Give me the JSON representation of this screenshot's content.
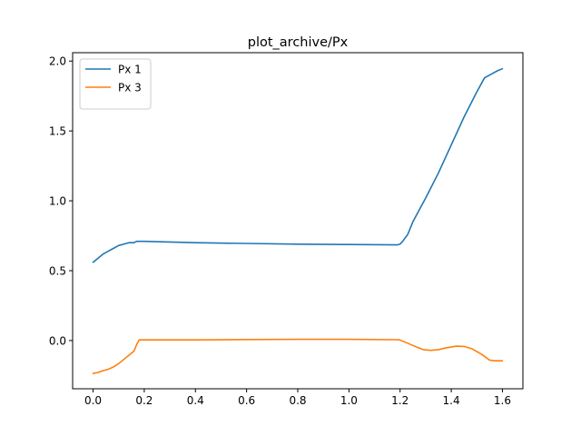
{
  "chart_data": {
    "type": "line",
    "title": "plot_archive/Px",
    "xlabel": "",
    "ylabel": "",
    "xlim": [
      -0.08,
      1.68
    ],
    "ylim": [
      -0.345,
      2.06
    ],
    "xticks": [
      0.0,
      0.2,
      0.4,
      0.6,
      0.8,
      1.0,
      1.2,
      1.4,
      1.6
    ],
    "xtick_labels": [
      "0.0",
      "0.2",
      "0.4",
      "0.6",
      "0.8",
      "1.0",
      "1.2",
      "1.4",
      "1.6"
    ],
    "yticks": [
      0.0,
      0.5,
      1.0,
      1.5,
      2.0
    ],
    "ytick_labels": [
      "0.0",
      "0.5",
      "1.0",
      "1.5",
      "2.0"
    ],
    "grid": false,
    "legend_position": "top-left",
    "series": [
      {
        "name": "Px 1",
        "color": "#1f77b4",
        "x": [
          0.0,
          0.02,
          0.04,
          0.06,
          0.08,
          0.1,
          0.12,
          0.14,
          0.16,
          0.17,
          0.18,
          0.2,
          0.4,
          0.6,
          0.8,
          1.0,
          1.19,
          1.2,
          1.21,
          1.23,
          1.25,
          1.3,
          1.35,
          1.4,
          1.45,
          1.5,
          1.53,
          1.56,
          1.58,
          1.6
        ],
        "y": [
          0.56,
          0.59,
          0.62,
          0.64,
          0.66,
          0.68,
          0.69,
          0.7,
          0.7,
          0.71,
          0.71,
          0.71,
          0.7,
          0.695,
          0.69,
          0.687,
          0.685,
          0.69,
          0.71,
          0.76,
          0.85,
          1.02,
          1.2,
          1.4,
          1.6,
          1.78,
          1.88,
          1.91,
          1.93,
          1.945
        ]
      },
      {
        "name": "Px 3",
        "color": "#ff7f0e",
        "x": [
          0.0,
          0.02,
          0.04,
          0.06,
          0.08,
          0.1,
          0.12,
          0.14,
          0.16,
          0.17,
          0.18,
          0.19,
          0.4,
          0.6,
          0.8,
          1.0,
          1.19,
          1.2,
          1.25,
          1.29,
          1.32,
          1.35,
          1.38,
          1.42,
          1.45,
          1.48,
          1.52,
          1.55,
          1.57,
          1.6
        ],
        "y": [
          -0.235,
          -0.228,
          -0.215,
          -0.205,
          -0.188,
          -0.165,
          -0.135,
          -0.105,
          -0.075,
          -0.03,
          0.005,
          0.005,
          0.005,
          0.007,
          0.009,
          0.009,
          0.006,
          0.004,
          -0.035,
          -0.065,
          -0.07,
          -0.065,
          -0.052,
          -0.04,
          -0.042,
          -0.058,
          -0.1,
          -0.14,
          -0.145,
          -0.145
        ]
      }
    ]
  }
}
